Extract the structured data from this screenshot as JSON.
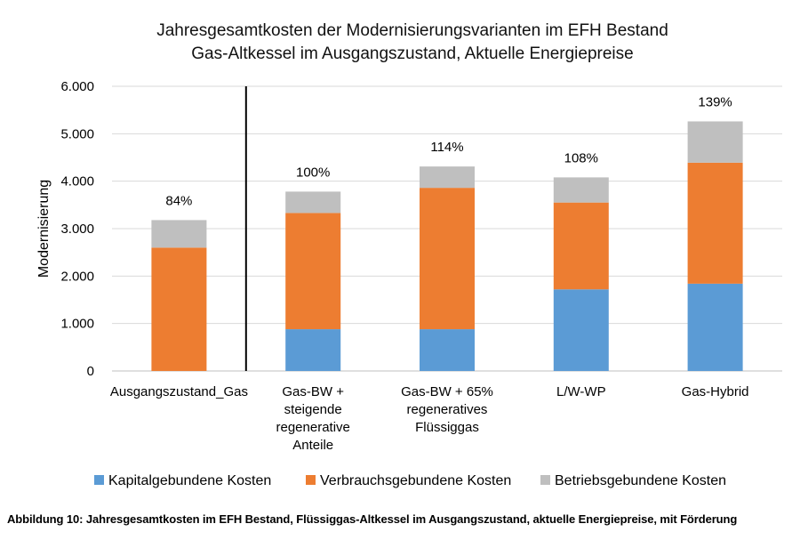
{
  "chart_data": {
    "type": "bar",
    "stacked": true,
    "title": [
      "Jahresgesamtkosten der Modernisierungsvarianten im EFH Bestand",
      "Gas-Altkessel im Ausgangszustand, Aktuelle Energiepreise"
    ],
    "ylabel": "Modernisierung",
    "ylim": [
      0,
      6000
    ],
    "yticks": [
      "0",
      "1.000",
      "2.000",
      "3.000",
      "4.000",
      "5.000",
      "6.000"
    ],
    "grid": true,
    "legend_position": "bottom",
    "categories": [
      [
        "Ausgangszustand_Gas"
      ],
      [
        "Gas-BW +",
        "steigende",
        "regenerative",
        "Anteile"
      ],
      [
        "Gas-BW + 65%",
        "regeneratives",
        "Flüssiggas"
      ],
      [
        "L/W-WP"
      ],
      [
        "Gas-Hybrid"
      ]
    ],
    "series": [
      {
        "name": "Kapitalgebundene Kosten",
        "color": "#5B9BD5",
        "values": [
          0,
          880,
          880,
          1720,
          1840
        ]
      },
      {
        "name": "Verbrauchsgebundene Kosten",
        "color": "#ED7D31",
        "values": [
          2600,
          2450,
          2980,
          1830,
          2550
        ]
      },
      {
        "name": "Betriebsgebundene Kosten",
        "color": "#BFBFBF",
        "values": [
          580,
          450,
          450,
          530,
          870
        ]
      }
    ],
    "data_labels": [
      "84%",
      "100%",
      "114%",
      "108%",
      "139%"
    ],
    "separator_after_category": 0
  },
  "caption": "Abbildung 10: Jahresgesamtkosten im EFH Bestand, Flüssiggas-Altkessel im Ausgangszustand, aktuelle Energiepreise, mit Förderung"
}
